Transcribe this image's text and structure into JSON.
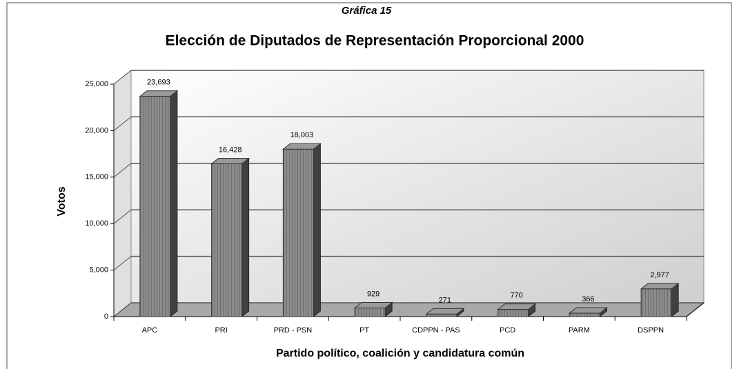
{
  "chart_data": {
    "type": "bar3d",
    "subtitle": "Gráfica 15",
    "title": "Elección de Diputados de Representación Proporcional 2000",
    "x_label": "Partido político, coalición y candidatura común",
    "y_label": "Votos",
    "categories": [
      "APC",
      "PRI",
      "PRD - PSN",
      "PT",
      "CDPPN - PAS",
      "PCD",
      "PARM",
      "DSPPN"
    ],
    "values": [
      23693,
      16428,
      18003,
      929,
      271,
      770,
      366,
      2977
    ],
    "value_labels": [
      "23,693",
      "16,428",
      "18,003",
      "929",
      "271",
      "770",
      "366",
      "2,977"
    ],
    "color": "#8c8c8c",
    "ylim": [
      0,
      25000
    ],
    "yticks": [
      0,
      {
        "value": 5000,
        "label": "5,000"
      },
      {
        "value": 10000,
        "label": "10,000"
      },
      {
        "value": 15000,
        "label": "15,000"
      },
      {
        "value": 20000,
        "label": "20,000"
      },
      {
        "value": 25000,
        "label": "25,000"
      }
    ],
    "grid": true
  }
}
